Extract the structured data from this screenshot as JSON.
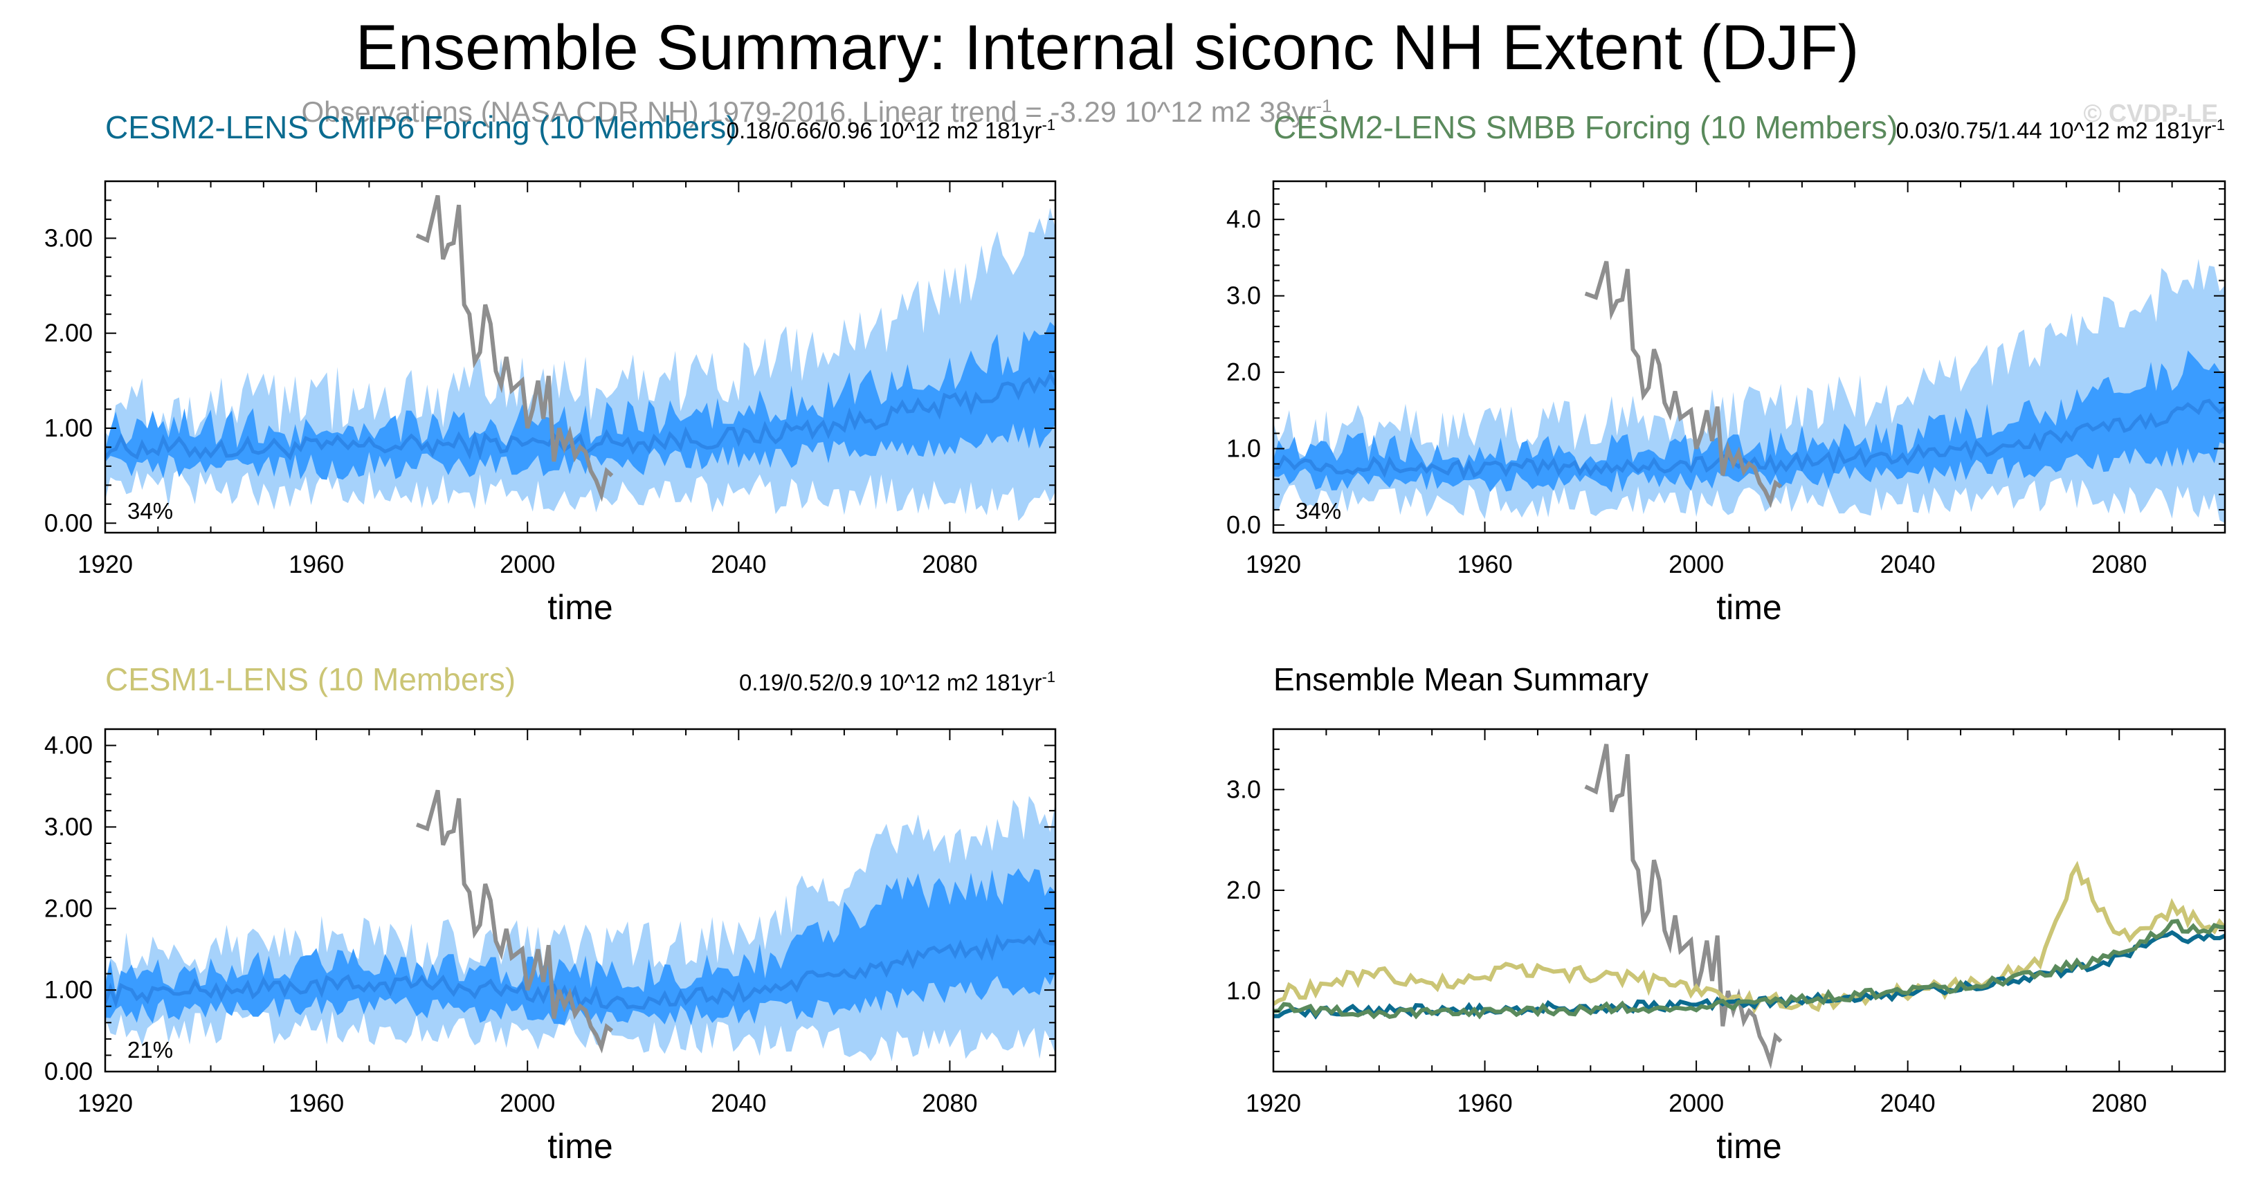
{
  "figure": {
    "title": "Ensemble Summary: Internal siconc NH Extent (DJF)",
    "subtitle_main": "Observations (NASA CDR NH) 1979-2016, Linear trend = -3.29 10^12 m2 38yr",
    "subtitle_sup": "-1",
    "credit": "© CVDP-LE"
  },
  "colors": {
    "band_outer": "#a6d2fb",
    "band_inner": "#3a9cff",
    "ens_mean": "#2d86e8",
    "obs": "#8e8e8e",
    "cesm2_cmip6": "#0b6b8f",
    "cesm2_smbb": "#5a8a5c",
    "cesm1": "#cbc575"
  },
  "chart_data": [
    {
      "id": "cesm2_cmip6",
      "type": "area",
      "title": "CESM2-LENS CMIP6 Forcing (10 Members)",
      "stat_main": "0.18/0.66/0.96 10^12 m2 181yr",
      "stat_sup": "-1",
      "percent": "34%",
      "xlabel": "time",
      "xlim": [
        1920,
        2100
      ],
      "xticks": [
        1920,
        1960,
        2000,
        2040,
        2080
      ],
      "ylim": [
        -0.1,
        3.6
      ],
      "yticks": [
        0.0,
        1.0,
        2.0,
        3.0
      ],
      "ytick_labels": [
        "0.00",
        "1.00",
        "2.00",
        "3.00"
      ],
      "series": [
        {
          "name": "ensemble mean",
          "x": [
            1920,
            1940,
            1960,
            1980,
            2000,
            2020,
            2040,
            2060,
            2080,
            2100
          ],
          "values": [
            0.8,
            0.78,
            0.8,
            0.82,
            0.84,
            0.86,
            0.9,
            1.05,
            1.25,
            1.5
          ]
        },
        {
          "name": "inner band (25-75%)",
          "x": [
            1920,
            1960,
            2000,
            2040,
            2070,
            2100
          ],
          "low": [
            0.62,
            0.6,
            0.62,
            0.68,
            0.78,
            0.95
          ],
          "high": [
            0.98,
            1.0,
            1.02,
            1.12,
            1.45,
            1.95
          ]
        },
        {
          "name": "outer band (min-max)",
          "x": [
            1920,
            1960,
            2000,
            2040,
            2070,
            2100
          ],
          "low": [
            0.4,
            0.35,
            0.3,
            0.3,
            0.3,
            0.2
          ],
          "high": [
            1.15,
            1.3,
            1.4,
            1.55,
            2.1,
            3.1
          ]
        },
        {
          "name": "Observations",
          "x": [
            1979,
            1981,
            1983,
            1984,
            1985,
            1986,
            1987,
            1988,
            1989,
            1990,
            1991,
            1992,
            1993,
            1994,
            1995,
            1996,
            1997,
            1998,
            1999,
            2000,
            2001,
            2002,
            2003,
            2004,
            2005,
            2006,
            2007,
            2008,
            2009,
            2010,
            2011,
            2012,
            2013,
            2014,
            2015,
            2016
          ],
          "values": [
            3.03,
            2.98,
            3.45,
            2.78,
            2.93,
            2.95,
            3.35,
            2.3,
            2.2,
            1.7,
            1.8,
            2.3,
            2.1,
            1.6,
            1.45,
            1.75,
            1.4,
            1.45,
            1.5,
            1.0,
            1.2,
            1.5,
            1.1,
            1.55,
            0.65,
            1.0,
            0.8,
            0.95,
            0.7,
            0.8,
            0.75,
            0.55,
            0.45,
            0.3,
            0.55,
            0.5
          ]
        }
      ]
    },
    {
      "id": "cesm2_smbb",
      "type": "area",
      "title": "CESM2-LENS SMBB Forcing (10 Members)",
      "stat_main": "0.03/0.75/1.44 10^12 m2 181yr",
      "stat_sup": "-1",
      "percent": "34%",
      "xlabel": "time",
      "xlim": [
        1920,
        2100
      ],
      "xticks": [
        1920,
        1960,
        2000,
        2040,
        2080
      ],
      "ylim": [
        -0.1,
        4.5
      ],
      "yticks": [
        0.0,
        1.0,
        2.0,
        3.0,
        4.0
      ],
      "ytick_labels": [
        "0.0",
        "1.0",
        "2.0",
        "3.0",
        "4.0"
      ],
      "series": [
        {
          "name": "ensemble mean",
          "x": [
            1920,
            1940,
            1960,
            1980,
            2000,
            2020,
            2040,
            2060,
            2080,
            2100
          ],
          "values": [
            0.85,
            0.76,
            0.74,
            0.76,
            0.8,
            0.83,
            0.9,
            1.05,
            1.3,
            1.6
          ]
        },
        {
          "name": "inner band (25-75%)",
          "x": [
            1920,
            1960,
            2000,
            2040,
            2070,
            2100
          ],
          "low": [
            0.62,
            0.55,
            0.58,
            0.65,
            0.8,
            0.95
          ],
          "high": [
            1.0,
            0.95,
            1.0,
            1.15,
            1.55,
            2.2
          ]
        },
        {
          "name": "outer band (min-max)",
          "x": [
            1920,
            1960,
            2000,
            2040,
            2070,
            2100
          ],
          "low": [
            0.4,
            0.3,
            0.3,
            0.35,
            0.4,
            0.25
          ],
          "high": [
            1.2,
            1.25,
            1.4,
            1.7,
            2.5,
            3.4
          ]
        },
        {
          "name": "Observations",
          "x": [
            1979,
            1981,
            1983,
            1984,
            1985,
            1986,
            1987,
            1988,
            1989,
            1990,
            1991,
            1992,
            1993,
            1994,
            1995,
            1996,
            1997,
            1998,
            1999,
            2000,
            2001,
            2002,
            2003,
            2004,
            2005,
            2006,
            2007,
            2008,
            2009,
            2010,
            2011,
            2012,
            2013,
            2014,
            2015,
            2016
          ],
          "values": [
            3.03,
            2.98,
            3.45,
            2.78,
            2.93,
            2.95,
            3.35,
            2.3,
            2.2,
            1.7,
            1.8,
            2.3,
            2.1,
            1.6,
            1.45,
            1.75,
            1.4,
            1.45,
            1.5,
            1.0,
            1.2,
            1.5,
            1.1,
            1.55,
            0.65,
            1.0,
            0.8,
            0.95,
            0.7,
            0.8,
            0.75,
            0.55,
            0.45,
            0.3,
            0.55,
            0.5
          ]
        }
      ]
    },
    {
      "id": "cesm1",
      "type": "area",
      "title": "CESM1-LENS (10 Members)",
      "stat_main": "0.19/0.52/0.9 10^12 m2 181yr",
      "stat_sup": "-1",
      "percent": "21%",
      "xlabel": "time",
      "xlim": [
        1920,
        2100
      ],
      "xticks": [
        1920,
        1960,
        2000,
        2040,
        2080
      ],
      "ylim": [
        0.0,
        4.2
      ],
      "yticks": [
        0.0,
        1.0,
        2.0,
        3.0,
        4.0
      ],
      "ytick_labels": [
        "0.00",
        "1.00",
        "2.00",
        "3.00",
        "4.00"
      ],
      "series": [
        {
          "name": "ensemble mean",
          "x": [
            1920,
            1940,
            1960,
            1980,
            2000,
            2020,
            2040,
            2060,
            2080,
            2100
          ],
          "values": [
            0.95,
            1.0,
            1.05,
            1.08,
            0.98,
            0.85,
            0.95,
            1.2,
            1.45,
            1.65
          ]
        },
        {
          "name": "inner band (25-75%)",
          "x": [
            1920,
            1960,
            2000,
            2040,
            2070,
            2100
          ],
          "low": [
            0.72,
            0.8,
            0.72,
            0.7,
            0.9,
            1.1
          ],
          "high": [
            1.15,
            1.3,
            1.2,
            1.2,
            2.2,
            2.3
          ]
        },
        {
          "name": "outer band (min-max)",
          "x": [
            1920,
            1960,
            2000,
            2040,
            2070,
            2100
          ],
          "low": [
            0.5,
            0.55,
            0.45,
            0.4,
            0.3,
            0.35
          ],
          "high": [
            1.35,
            1.55,
            1.5,
            1.6,
            2.8,
            3.1
          ]
        },
        {
          "name": "Observations",
          "x": [
            1979,
            1981,
            1983,
            1984,
            1985,
            1986,
            1987,
            1988,
            1989,
            1990,
            1991,
            1992,
            1993,
            1994,
            1995,
            1996,
            1997,
            1998,
            1999,
            2000,
            2001,
            2002,
            2003,
            2004,
            2005,
            2006,
            2007,
            2008,
            2009,
            2010,
            2011,
            2012,
            2013,
            2014,
            2015,
            2016
          ],
          "values": [
            3.03,
            2.98,
            3.45,
            2.78,
            2.93,
            2.95,
            3.35,
            2.3,
            2.2,
            1.7,
            1.8,
            2.3,
            2.1,
            1.6,
            1.45,
            1.75,
            1.4,
            1.45,
            1.5,
            1.0,
            1.2,
            1.5,
            1.1,
            1.55,
            0.65,
            1.0,
            0.8,
            0.95,
            0.7,
            0.8,
            0.75,
            0.55,
            0.45,
            0.3,
            0.55,
            0.5
          ]
        }
      ]
    },
    {
      "id": "summary",
      "type": "line",
      "title": "Ensemble Mean Summary",
      "xlabel": "time",
      "xlim": [
        1920,
        2100
      ],
      "xticks": [
        1920,
        1960,
        2000,
        2040,
        2080
      ],
      "ylim": [
        0.2,
        3.6
      ],
      "yticks": [
        1.0,
        2.0,
        3.0
      ],
      "ytick_labels": [
        "1.0",
        "2.0",
        "3.0"
      ],
      "series": [
        {
          "name": "CESM2-LENS CMIP6 Forcing",
          "x": [
            1920,
            1935,
            1950,
            1965,
            1980,
            1995,
            2005,
            2015,
            2030,
            2045,
            2060,
            2075,
            2085,
            2090,
            2100
          ],
          "values": [
            0.8,
            0.8,
            0.82,
            0.83,
            0.84,
            0.86,
            0.88,
            0.9,
            0.93,
            1.0,
            1.1,
            1.25,
            1.45,
            1.55,
            1.5
          ]
        },
        {
          "name": "CESM2-LENS SMBB Forcing",
          "x": [
            1920,
            1935,
            1950,
            1965,
            1980,
            1995,
            2005,
            2015,
            2030,
            2045,
            2060,
            2075,
            2085,
            2090,
            2100
          ],
          "values": [
            0.85,
            0.78,
            0.78,
            0.8,
            0.82,
            0.84,
            0.86,
            0.9,
            0.95,
            1.02,
            1.12,
            1.3,
            1.5,
            1.65,
            1.6
          ]
        },
        {
          "name": "CESM1-LENS",
          "x": [
            1920,
            1930,
            1940,
            1950,
            1965,
            1980,
            1990,
            2000,
            2010,
            2020,
            2035,
            2050,
            2065,
            2072,
            2080,
            2090,
            2100
          ],
          "values": [
            0.95,
            1.05,
            1.2,
            1.05,
            1.2,
            1.15,
            1.1,
            1.0,
            0.9,
            0.88,
            0.95,
            1.05,
            1.3,
            2.2,
            1.5,
            1.8,
            1.6
          ]
        },
        {
          "name": "Observations",
          "x": [
            1979,
            1981,
            1983,
            1984,
            1985,
            1986,
            1987,
            1988,
            1989,
            1990,
            1991,
            1992,
            1993,
            1994,
            1995,
            1996,
            1997,
            1998,
            1999,
            2000,
            2001,
            2002,
            2003,
            2004,
            2005,
            2006,
            2007,
            2008,
            2009,
            2010,
            2011,
            2012,
            2013,
            2014,
            2015,
            2016
          ],
          "values": [
            3.03,
            2.98,
            3.45,
            2.78,
            2.93,
            2.95,
            3.35,
            2.3,
            2.2,
            1.7,
            1.8,
            2.3,
            2.1,
            1.6,
            1.45,
            1.75,
            1.4,
            1.45,
            1.5,
            1.0,
            1.2,
            1.5,
            1.1,
            1.55,
            0.65,
            1.0,
            0.8,
            0.95,
            0.7,
            0.8,
            0.75,
            0.55,
            0.45,
            0.3,
            0.55,
            0.5
          ]
        }
      ]
    }
  ]
}
